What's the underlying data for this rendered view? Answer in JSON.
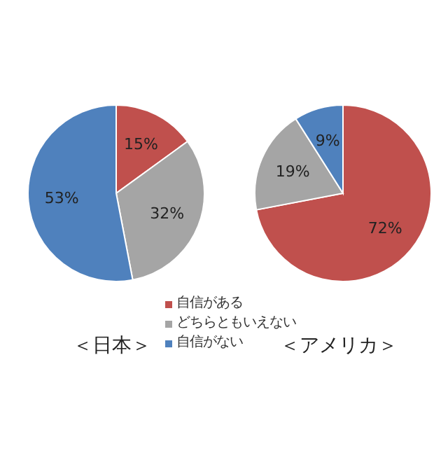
{
  "chart_data": [
    {
      "type": "pie",
      "title": "＜日本＞",
      "categories": [
        "自信がある",
        "どちらともいえない",
        "自信がない"
      ],
      "values": [
        15,
        32,
        53
      ],
      "value_labels": [
        "15%",
        "32%",
        "53%"
      ],
      "colors": [
        "#c0504d",
        "#a5a5a5",
        "#4f81bd"
      ],
      "legend": "bottom right"
    },
    {
      "type": "pie",
      "title": "＜アメリカ＞",
      "categories": [
        null,
        null,
        null
      ],
      "values": [
        72,
        19,
        9
      ],
      "value_labels": [
        "72%",
        "19%",
        "9%"
      ],
      "colors": [
        "#c0504d",
        "#a5a5a5",
        "#4f81bd"
      ]
    }
  ]
}
